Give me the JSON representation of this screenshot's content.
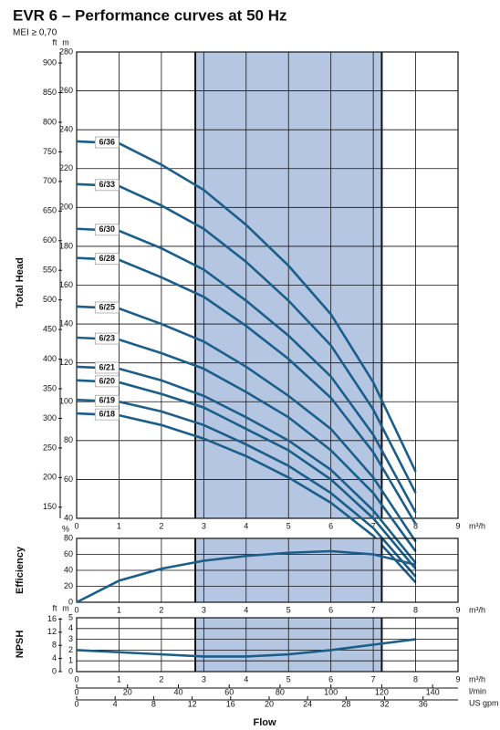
{
  "chart_data": [
    {
      "type": "line",
      "title": "EVR 6 – Performance curves at 50 Hz",
      "subtitle": "MEI ≥ 0,70",
      "y_label": "Total Head",
      "y_unit": "m",
      "y2_unit": "ft",
      "x_unit": "m³/h",
      "xlim": [
        0,
        9
      ],
      "xticks": [
        0,
        1,
        2,
        3,
        4,
        5,
        6,
        7,
        8,
        9
      ],
      "ylim": [
        40,
        280
      ],
      "yticks": [
        40,
        60,
        80,
        100,
        120,
        140,
        160,
        180,
        200,
        220,
        240,
        260,
        280
      ],
      "y2lim": [
        131.2,
        918.6
      ],
      "y2ticks": [
        150,
        200,
        250,
        300,
        350,
        400,
        450,
        500,
        550,
        600,
        650,
        700,
        750,
        800,
        850,
        900
      ],
      "shaded_range": [
        2.8,
        7.2
      ],
      "grid": true,
      "x": [
        0,
        1,
        2,
        3,
        4,
        5,
        6,
        7,
        8
      ],
      "series": [
        {
          "name": "6/36",
          "color": "#1b5e8a",
          "values": [
            234,
            233,
            222,
            209,
            191,
            170,
            145,
            110,
            64
          ]
        },
        {
          "name": "6/33",
          "color": "#1b5e8a",
          "values": [
            212,
            211,
            201,
            189,
            172,
            152,
            129,
            96,
            53
          ]
        },
        {
          "name": "6/30",
          "color": "#1b5e8a",
          "values": [
            189,
            188,
            179,
            168,
            152,
            134,
            113,
            83,
            43
          ]
        },
        {
          "name": "6/28",
          "color": "#1b5e8a",
          "values": [
            174,
            173,
            164,
            154,
            139,
            122,
            102,
            74,
            37
          ]
        },
        {
          "name": "6/25",
          "color": "#1b5e8a",
          "values": [
            149,
            148,
            140,
            131,
            118,
            103,
            86,
            61,
            28
          ]
        },
        {
          "name": "6/23",
          "color": "#1b5e8a",
          "values": [
            133,
            132,
            125,
            117,
            105,
            92,
            75,
            53,
            23
          ]
        },
        {
          "name": "6/21",
          "color": "#1b5e8a",
          "values": [
            118,
            117,
            111,
            103,
            92,
            80,
            65,
            44,
            17
          ]
        },
        {
          "name": "6/20",
          "color": "#1b5e8a",
          "values": [
            111,
            110,
            104,
            97,
            86,
            75,
            60,
            40,
            14
          ]
        },
        {
          "name": "6/19",
          "color": "#1b5e8a",
          "values": [
            101,
            100,
            95,
            88,
            78,
            67,
            53,
            35,
            10
          ]
        },
        {
          "name": "6/18",
          "color": "#1b5e8a",
          "values": [
            94,
            93,
            88,
            81,
            72,
            61,
            48,
            31,
            7
          ]
        }
      ]
    },
    {
      "type": "line",
      "y_label": "Efficiency",
      "y_unit": "%",
      "x_unit": "m³/h",
      "xlim": [
        0,
        9
      ],
      "xticks": [
        0,
        1,
        2,
        3,
        4,
        5,
        6,
        7,
        8,
        9
      ],
      "ylim": [
        0,
        80
      ],
      "yticks": [
        0,
        20,
        40,
        60,
        80
      ],
      "shaded_range": [
        2.8,
        7.2
      ],
      "grid": true,
      "x": [
        0,
        1,
        2,
        3,
        4,
        5,
        6,
        7,
        8
      ],
      "series": [
        {
          "color": "#1b5e8a",
          "values": [
            0,
            27,
            42,
            52,
            58,
            62,
            64,
            60,
            47
          ]
        }
      ]
    },
    {
      "type": "line",
      "y_label": "NPSH",
      "y_unit": "m",
      "y2_unit": "ft",
      "x_unit": "m³/h",
      "x_label": "Flow",
      "xlim": [
        0,
        9
      ],
      "xticks": [
        0,
        1,
        2,
        3,
        4,
        5,
        6,
        7,
        8,
        9
      ],
      "ylim": [
        0,
        5
      ],
      "yticks": [
        0,
        1,
        2,
        3,
        4,
        5
      ],
      "y2lim": [
        0,
        16.4
      ],
      "y2ticks": [
        0,
        4,
        8,
        12,
        16
      ],
      "shaded_range": [
        2.8,
        7.2
      ],
      "grid": true,
      "extra_x_axes": [
        {
          "unit": "l/min",
          "lim": [
            0,
            150
          ],
          "ticks": [
            0,
            20,
            40,
            60,
            80,
            100,
            120,
            140
          ]
        },
        {
          "unit": "US gpm",
          "lim": [
            0,
            39.63
          ],
          "ticks": [
            0,
            4,
            8,
            12,
            16,
            20,
            24,
            28,
            32,
            36
          ]
        }
      ],
      "x": [
        0,
        1,
        2,
        3,
        4,
        5,
        6,
        7,
        8
      ],
      "series": [
        {
          "color": "#1b5e8a",
          "values": [
            2.0,
            1.8,
            1.6,
            1.4,
            1.4,
            1.6,
            2.0,
            2.5,
            3.0
          ]
        }
      ]
    }
  ]
}
